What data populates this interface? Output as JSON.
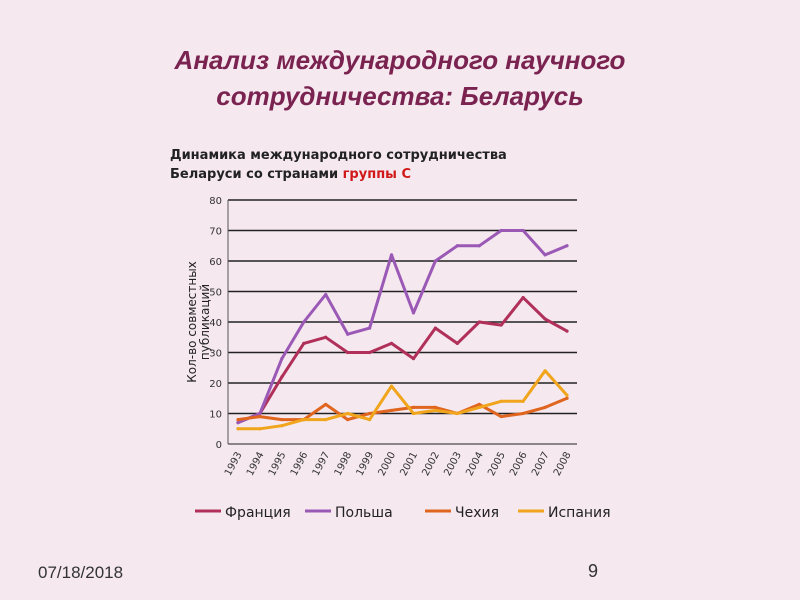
{
  "slide": {
    "title_line1": "Анализ международного научного",
    "title_line2": "сотрудничества: Беларусь",
    "footer_date": "07/18/2018",
    "page_number": "9"
  },
  "chart_data": {
    "type": "line",
    "title_line1": "Динамика международного сотрудничества",
    "title_line2_prefix": "Беларуси со странами ",
    "title_line2_highlight": "группы С",
    "ylabel_line1": "Кол-во совместных",
    "ylabel_line2": "публикаций",
    "ylim": [
      0,
      80
    ],
    "yticks": [
      0,
      10,
      20,
      30,
      40,
      50,
      60,
      70,
      80
    ],
    "x": [
      "1993",
      "1994",
      "1995",
      "1996",
      "1997",
      "1998",
      "1999",
      "2000",
      "2001",
      "2002",
      "2003",
      "2004",
      "2005",
      "2006",
      "2007",
      "2008"
    ],
    "grid": true,
    "legend_position": "bottom",
    "series": [
      {
        "name": "Франция",
        "color": "#b0305a",
        "values": [
          7,
          10,
          22,
          33,
          35,
          30,
          30,
          33,
          28,
          38,
          33,
          40,
          39,
          48,
          41,
          37
        ]
      },
      {
        "name": "Польша",
        "color": "#9b59b6",
        "values": [
          7,
          10,
          28,
          40,
          49,
          36,
          38,
          62,
          43,
          60,
          65,
          65,
          70,
          70,
          62,
          65
        ]
      },
      {
        "name": "Чехия",
        "color": "#e0651f",
        "values": [
          8,
          9,
          8,
          8,
          13,
          8,
          10,
          11,
          12,
          12,
          10,
          13,
          9,
          10,
          12,
          15
        ]
      },
      {
        "name": "Испания",
        "color": "#f0a51c",
        "values": [
          5,
          5,
          6,
          8,
          8,
          10,
          8,
          19,
          10,
          11,
          10,
          12,
          14,
          14,
          24,
          16
        ]
      }
    ]
  }
}
